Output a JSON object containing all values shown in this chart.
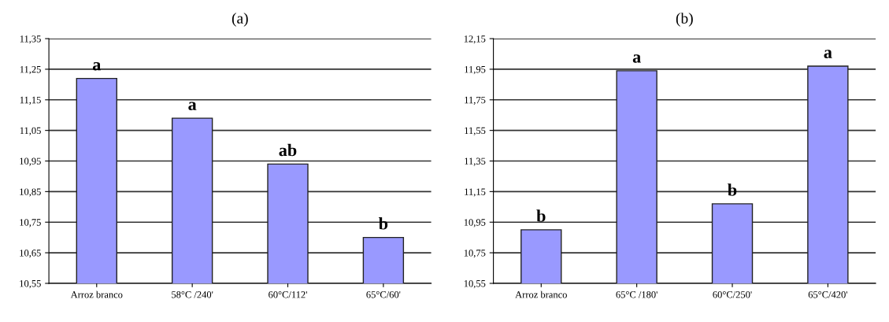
{
  "chart_data": [
    {
      "type": "bar",
      "title": "(a)",
      "categories": [
        "Arroz branco",
        "58°C /240'",
        "60°C/112'",
        "65°C/60'"
      ],
      "values": [
        11.22,
        11.09,
        10.94,
        10.7
      ],
      "color": "#9999ff",
      "ylim": [
        10.55,
        11.35
      ],
      "yticks": [
        {
          "value": 10.55,
          "label": "10,55"
        },
        {
          "value": 10.65,
          "label": "10,65"
        },
        {
          "value": 10.75,
          "label": "10,75"
        },
        {
          "value": 10.85,
          "label": "10,85"
        },
        {
          "value": 10.95,
          "label": "10,95"
        },
        {
          "value": 11.05,
          "label": "11,05"
        },
        {
          "value": 11.15,
          "label": "11,15"
        },
        {
          "value": 11.25,
          "label": "11,25"
        },
        {
          "value": 11.35,
          "label": "11,35"
        }
      ],
      "grid": "y",
      "annotations": [
        {
          "text": "a",
          "x": "Arroz branco",
          "y": 11.22
        },
        {
          "text": "a",
          "x": "58°C /240'",
          "y": 11.09
        },
        {
          "text": "ab",
          "x": "60°C/112'",
          "y": 10.94
        },
        {
          "text": "b",
          "x": "65°C/60'",
          "y": 10.7
        }
      ]
    },
    {
      "type": "bar",
      "title": "(b)",
      "categories": [
        "Arroz branco",
        "65°C /180'",
        "60°C/250'",
        "65°C/420'"
      ],
      "values": [
        10.9,
        11.94,
        11.07,
        11.97
      ],
      "color": "#9999ff",
      "ylim": [
        10.55,
        12.15
      ],
      "yticks": [
        {
          "value": 10.55,
          "label": "10,55"
        },
        {
          "value": 10.75,
          "label": "10,75"
        },
        {
          "value": 10.95,
          "label": "10,95"
        },
        {
          "value": 11.15,
          "label": "11,15"
        },
        {
          "value": 11.35,
          "label": "11,35"
        },
        {
          "value": 11.55,
          "label": "11,55"
        },
        {
          "value": 11.75,
          "label": "11,75"
        },
        {
          "value": 11.95,
          "label": "11,95"
        },
        {
          "value": 12.15,
          "label": "12,15"
        }
      ],
      "grid": "y",
      "annotations": [
        {
          "text": "b",
          "x": "Arroz branco",
          "y": 10.9
        },
        {
          "text": "a",
          "x": "65°C /180'",
          "y": 11.94
        },
        {
          "text": "b",
          "x": "60°C/250'",
          "y": 11.07
        },
        {
          "text": "a",
          "x": "65°C/420'",
          "y": 11.97
        }
      ]
    }
  ]
}
